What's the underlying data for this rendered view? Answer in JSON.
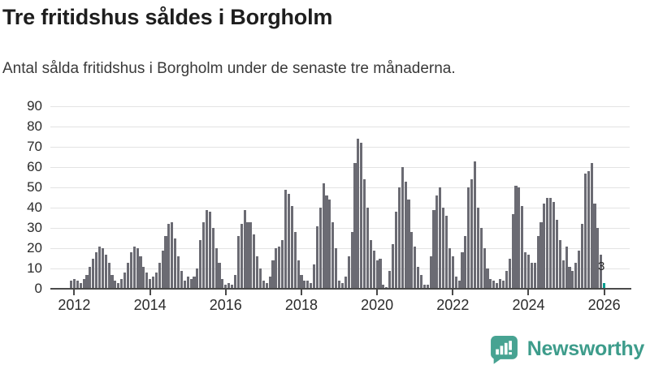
{
  "header": {
    "title": "Tre fritidshus såldes i Borgholm",
    "subtitle": "Antal sålda fritidshus i Borgholm under de senaste tre månaderna."
  },
  "chart_data": {
    "type": "bar",
    "title": "Tre fritidshus såldes i Borgholm",
    "subtitle": "Antal sålda fritidshus i Borgholm under de senaste tre månaderna.",
    "xlabel": "",
    "ylabel": "",
    "frequency": "monthly",
    "start_month": "2011-12",
    "end_month": "2026-01",
    "grid": true,
    "legend": false,
    "y_axis": {
      "min": 0,
      "max": 90,
      "tick_step": 10,
      "ticks": [
        0,
        10,
        20,
        30,
        40,
        50,
        60,
        70,
        80,
        90
      ]
    },
    "x_axis": {
      "tick_labels": [
        "2012",
        "2014",
        "2016",
        "2018",
        "2020",
        "2022",
        "2024",
        "2026"
      ],
      "tick_interval_months": 24,
      "first_tick_month": "2012-01"
    },
    "values": [
      4,
      5,
      4,
      3,
      5,
      7,
      11,
      15,
      18,
      21,
      20,
      17,
      13,
      7,
      4,
      3,
      5,
      8,
      13,
      18,
      21,
      20,
      16,
      11,
      8,
      5,
      6,
      8,
      13,
      19,
      26,
      32,
      33,
      25,
      16,
      9,
      4,
      6,
      5,
      6,
      10,
      24,
      33,
      39,
      38,
      30,
      20,
      13,
      5,
      2,
      3,
      2,
      7,
      26,
      32,
      39,
      33,
      33,
      27,
      16,
      10,
      4,
      3,
      6,
      14,
      20,
      21,
      24,
      49,
      47,
      41,
      28,
      14,
      7,
      4,
      4,
      3,
      12,
      31,
      40,
      52,
      46,
      44,
      33,
      20,
      4,
      3,
      6,
      16,
      28,
      62,
      74,
      72,
      54,
      40,
      24,
      19,
      14,
      15,
      2,
      1,
      9,
      22,
      38,
      50,
      60,
      53,
      44,
      28,
      21,
      11,
      7,
      2,
      2,
      16,
      39,
      46,
      50,
      40,
      36,
      20,
      16,
      6,
      4,
      18,
      26,
      50,
      54,
      63,
      40,
      30,
      20,
      10,
      5,
      4,
      3,
      5,
      4,
      9,
      15,
      37,
      51,
      50,
      41,
      18,
      17,
      13,
      13,
      26,
      33,
      42,
      45,
      45,
      43,
      34,
      24,
      14,
      21,
      11,
      9,
      13,
      19,
      32,
      57,
      58,
      62,
      42,
      30,
      17,
      3
    ],
    "highlight": {
      "position": "last",
      "value": 3,
      "label": "3"
    },
    "colors": {
      "bar": "#6b6b73",
      "highlight_bar": "#009b8d",
      "gridline": "#e3e3e3",
      "axis": "#4a4a4a",
      "label": "#2b2b2b"
    }
  },
  "branding": {
    "logo_text": "Newsworthy",
    "logo_color": "#3d9c8b",
    "icon_color": "#47a392",
    "icon_name": "newsworthy-chart-bubble-icon"
  }
}
